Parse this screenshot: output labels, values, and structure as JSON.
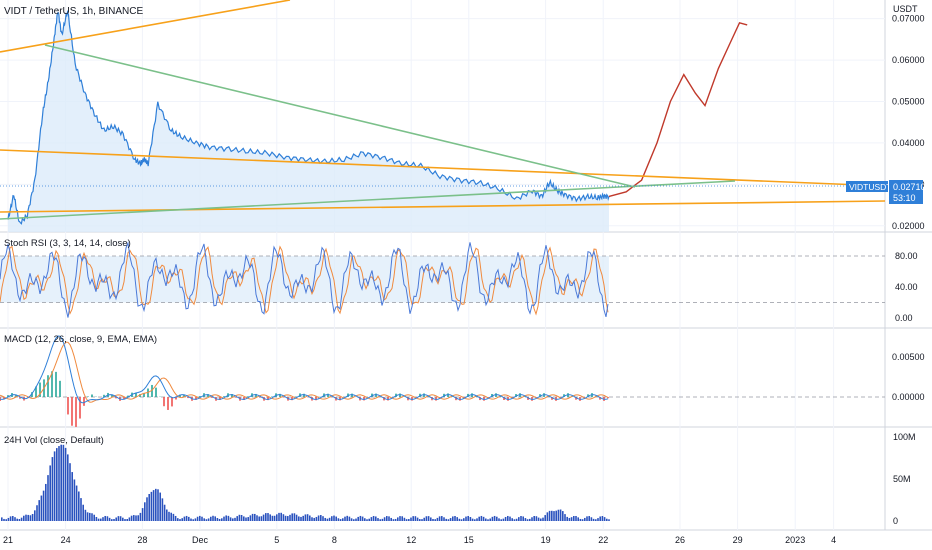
{
  "colors": {
    "price": "#2f7fd8",
    "price_fill": "#dcebfa",
    "trend_orange": "#f7a11a",
    "trend_green": "#7bc08a",
    "projection": "#c0392b",
    "stoch_k": "#4a79d8",
    "stoch_d": "#f08a3e",
    "rsi_band": "#dcebfa",
    "macd_line": "#2f7fd8",
    "signal_line": "#f08a3e",
    "hist_pos": "#26a69a",
    "hist_neg": "#ef5350",
    "volume": "#2a52be",
    "badge_bg": "#2f7fd8",
    "separator": "#d1d4dc",
    "grid": "#f0f3fa"
  },
  "header": {
    "title": "VIDT / TetherUS, 1h, BINANCE"
  },
  "price_axis": {
    "unit": "USDT",
    "ticks": [
      "0.07000",
      "0.06000",
      "0.05000",
      "0.04000",
      "0.03000",
      "0.02000"
    ],
    "tick_values": [
      0.07,
      0.06,
      0.05,
      0.04,
      0.03,
      0.02
    ]
  },
  "badge": {
    "symbol": "VIDTUSDT",
    "price": "0.02710",
    "countdown": "53:10"
  },
  "stoch": {
    "label": "Stoch RSI (3, 3, 14, 14, close)",
    "ticks": [
      "80.00",
      "40.00",
      "0.00"
    ],
    "tick_values": [
      80,
      40,
      0
    ]
  },
  "macd": {
    "label": "MACD (12, 26, close, 9, EMA, EMA)",
    "ticks": [
      "0.00500",
      "0.00000"
    ],
    "tick_values": [
      0.005,
      0
    ]
  },
  "volume": {
    "label": "24H Vol (close, Default)",
    "ticks": [
      "100M",
      "50M",
      "0"
    ],
    "tick_values": [
      100,
      50,
      0
    ]
  },
  "time_axis": {
    "labels": [
      "21",
      "24",
      "28",
      "Dec",
      "5",
      "8",
      "12",
      "15",
      "19",
      "22",
      "26",
      "29",
      "2023",
      "4"
    ],
    "day_offsets": [
      0,
      3,
      7,
      10,
      14,
      17,
      21,
      24,
      28,
      31,
      35,
      38,
      41,
      43
    ]
  },
  "chart_data": {
    "type": "line",
    "title": "VIDT / TetherUS, 1h, BINANCE",
    "xlabel": "",
    "ylabel": "USDT",
    "ylim": [
      0.0185,
      0.0745
    ],
    "x_dates": [
      "Nov 21",
      "Nov 24",
      "Nov 28",
      "Dec 1",
      "Dec 5",
      "Dec 8",
      "Dec 12",
      "Dec 15",
      "Dec 19",
      "Dec 22",
      "Dec 26",
      "Dec 29",
      "Jan 1 2023",
      "Jan 4"
    ],
    "series": [
      {
        "x": [
          0,
          0.3,
          0.6,
          1.0,
          1.4,
          1.8,
          2.1,
          2.4,
          2.6,
          2.8,
          3.1,
          3.5,
          4.0,
          4.5,
          5.0,
          5.5,
          6.0,
          6.6,
          6.9,
          7.1,
          7.3,
          7.8,
          8.5,
          9.0,
          9.8,
          10.5,
          11.5,
          12.5,
          13.5,
          14.5,
          15.5,
          16.5,
          17.5,
          18.5,
          19.5,
          20.5,
          21.5,
          22.5,
          23.5,
          24.5,
          25.5,
          26.5,
          27.3,
          27.8,
          28.2,
          28.6,
          29.0,
          29.6,
          30.2,
          30.7,
          31.0,
          31.3
        ],
        "y": [
          0.0215,
          0.0275,
          0.0205,
          0.0225,
          0.031,
          0.047,
          0.055,
          0.065,
          0.072,
          0.066,
          0.072,
          0.059,
          0.052,
          0.047,
          0.043,
          0.044,
          0.042,
          0.036,
          0.035,
          0.036,
          0.035,
          0.0495,
          0.043,
          0.0415,
          0.04,
          0.039,
          0.0385,
          0.038,
          0.0375,
          0.0365,
          0.036,
          0.0355,
          0.036,
          0.0375,
          0.0365,
          0.035,
          0.0345,
          0.032,
          0.031,
          0.0305,
          0.029,
          0.0265,
          0.0285,
          0.027,
          0.0305,
          0.0285,
          0.0275,
          0.0265,
          0.027,
          0.0268,
          0.0271,
          0.0271
        ]
      },
      {
        "x": [
          31.3,
          32.2,
          33.0,
          33.8,
          34.5,
          35.2,
          35.8,
          36.3,
          37.0,
          37.6,
          38.1,
          38.5
        ],
        "y": [
          0.0271,
          0.0282,
          0.031,
          0.04,
          0.05,
          0.0565,
          0.052,
          0.049,
          0.058,
          0.064,
          0.069,
          0.0685
        ]
      }
    ]
  }
}
